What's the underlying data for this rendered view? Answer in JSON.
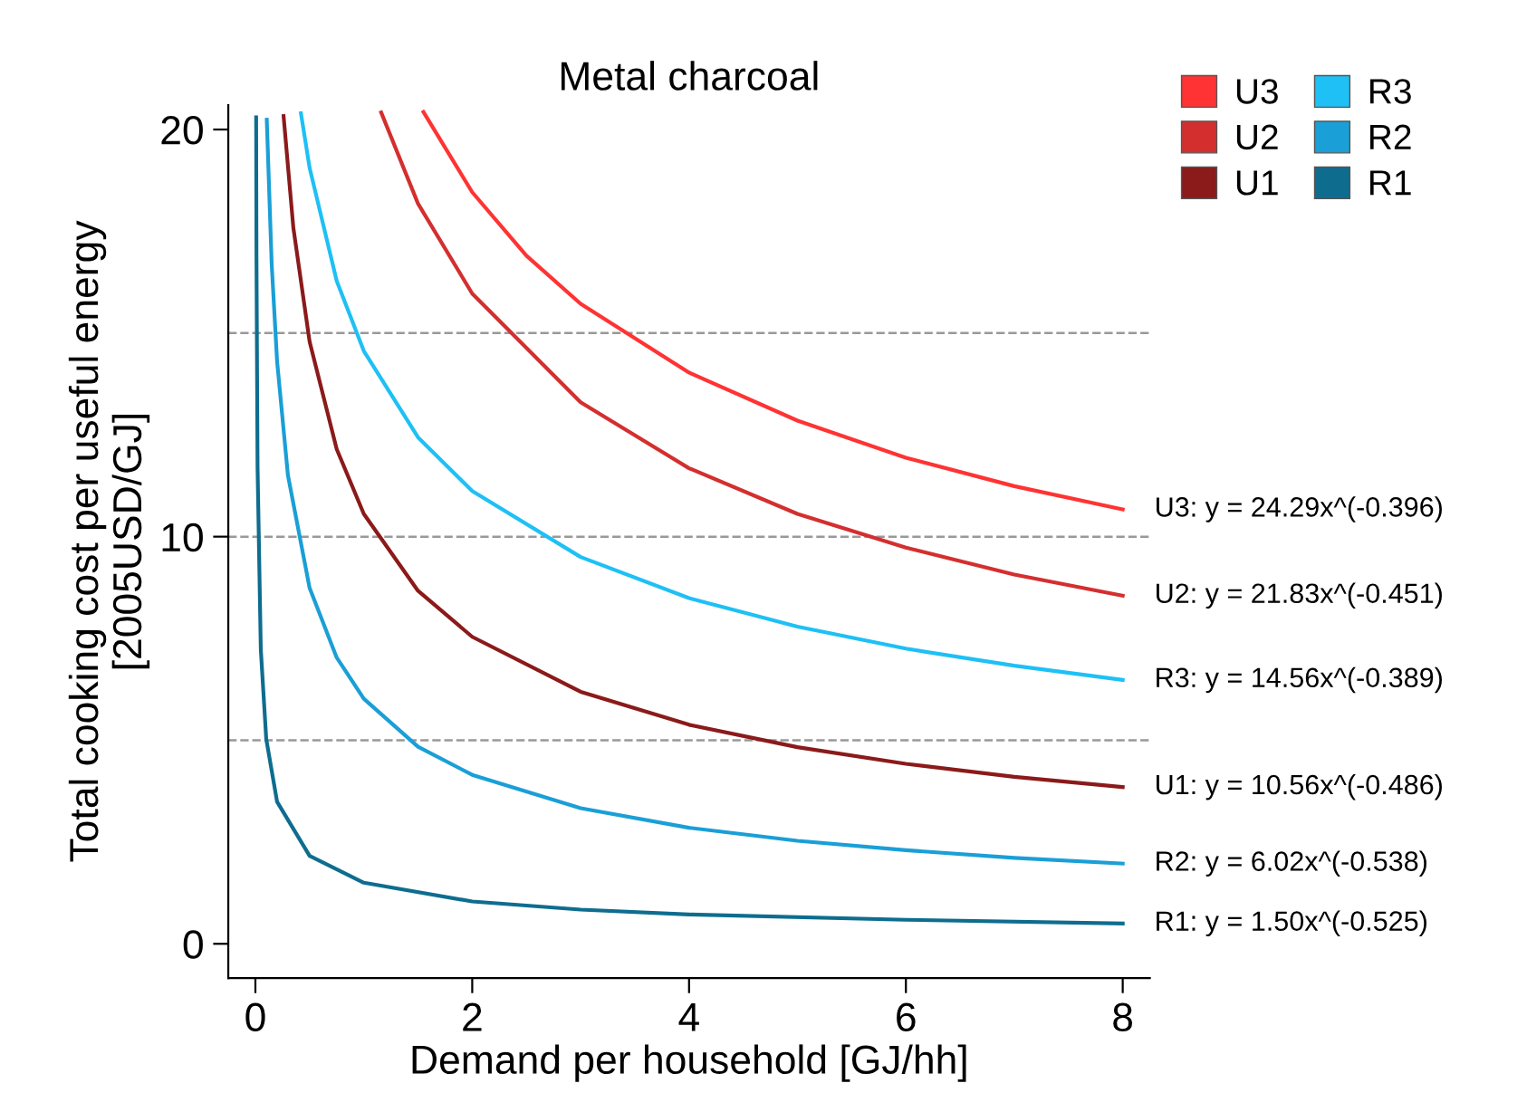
{
  "chart_data": {
    "type": "line",
    "title": "Metal charcoal",
    "xlabel": "Demand per household [GJ/hh]",
    "ylabel": "Total cooking cost per useful energy\n[2005USD/GJ]",
    "series": [
      {
        "name": "U3",
        "color": "#ff3333",
        "x": [
          1.55,
          2,
          2.5,
          3,
          4,
          5,
          6,
          7,
          8
        ],
        "values": [
          20.43,
          18.46,
          16.9,
          15.72,
          14.03,
          12.85,
          11.94,
          11.24,
          10.67
        ]
      },
      {
        "name": "U2",
        "color": "#d42f2f",
        "x": [
          1.16,
          1.5,
          2,
          3,
          4,
          5,
          6,
          7,
          8
        ],
        "values": [
          20.42,
          18.18,
          15.97,
          13.3,
          11.68,
          10.56,
          9.73,
          9.07,
          8.55
        ]
      },
      {
        "name": "U1",
        "color": "#8b1a1a",
        "x": [
          0.26,
          0.35,
          0.5,
          0.75,
          1,
          1.5,
          2,
          3,
          4,
          5,
          6,
          7,
          8
        ],
        "values": [
          20.33,
          17.59,
          14.79,
          12.15,
          10.56,
          8.67,
          7.54,
          6.19,
          5.38,
          4.83,
          4.42,
          4.1,
          3.85
        ]
      },
      {
        "name": "R3",
        "color": "#1ec0f5",
        "x": [
          0.42,
          0.5,
          0.75,
          1,
          1.5,
          2,
          3,
          4,
          5,
          6,
          7,
          8
        ],
        "values": [
          20.4,
          19.06,
          16.28,
          14.56,
          12.44,
          11.12,
          9.5,
          8.49,
          7.79,
          7.25,
          6.83,
          6.48
        ]
      },
      {
        "name": "R2",
        "color": "#1a9fd6",
        "x": [
          0.105,
          0.15,
          0.2,
          0.3,
          0.5,
          0.75,
          1,
          1.5,
          2,
          3,
          4,
          5,
          6,
          7,
          8
        ],
        "values": [
          20.24,
          16.71,
          14.31,
          11.51,
          8.74,
          7.03,
          6.02,
          4.84,
          4.15,
          3.33,
          2.85,
          2.53,
          2.3,
          2.11,
          1.97
        ]
      },
      {
        "name": "R1",
        "color": "#0e6d8f",
        "x": [
          0.007,
          0.01,
          0.02,
          0.05,
          0.1,
          0.2,
          0.5,
          1,
          2,
          3,
          4,
          6,
          8
        ],
        "values": [
          20.3,
          16.83,
          11.7,
          7.23,
          5.03,
          3.49,
          2.16,
          1.5,
          1.04,
          0.84,
          0.72,
          0.59,
          0.5
        ]
      }
    ],
    "annotations": [
      "U3: y = 24.29x^(-0.396)",
      "U2: y = 21.83x^(-0.451)",
      "R3: y = 14.56x^(-0.389)",
      "U1: y = 10.56x^(-0.486)",
      "R2: y = 6.02x^(-0.538)",
      "R1: y = 1.50x^(-0.525)"
    ],
    "ref_lines": [
      {
        "axis": "y",
        "value": 5,
        "color": "#999999",
        "line_style": "dashed"
      },
      {
        "axis": "y",
        "value": 10,
        "color": "#999999",
        "line_style": "dashed"
      },
      {
        "axis": "y",
        "value": 15,
        "color": "#999999",
        "line_style": "dashed"
      }
    ],
    "xlim": [
      -0.25,
      8.25
    ],
    "ylim": [
      -0.84,
      20.6
    ],
    "xticks": [
      0,
      2,
      4,
      6,
      8
    ],
    "yticks": [
      0,
      10,
      20
    ],
    "legend": "top right",
    "marker": "none",
    "line_style": "solid",
    "grid": false
  }
}
